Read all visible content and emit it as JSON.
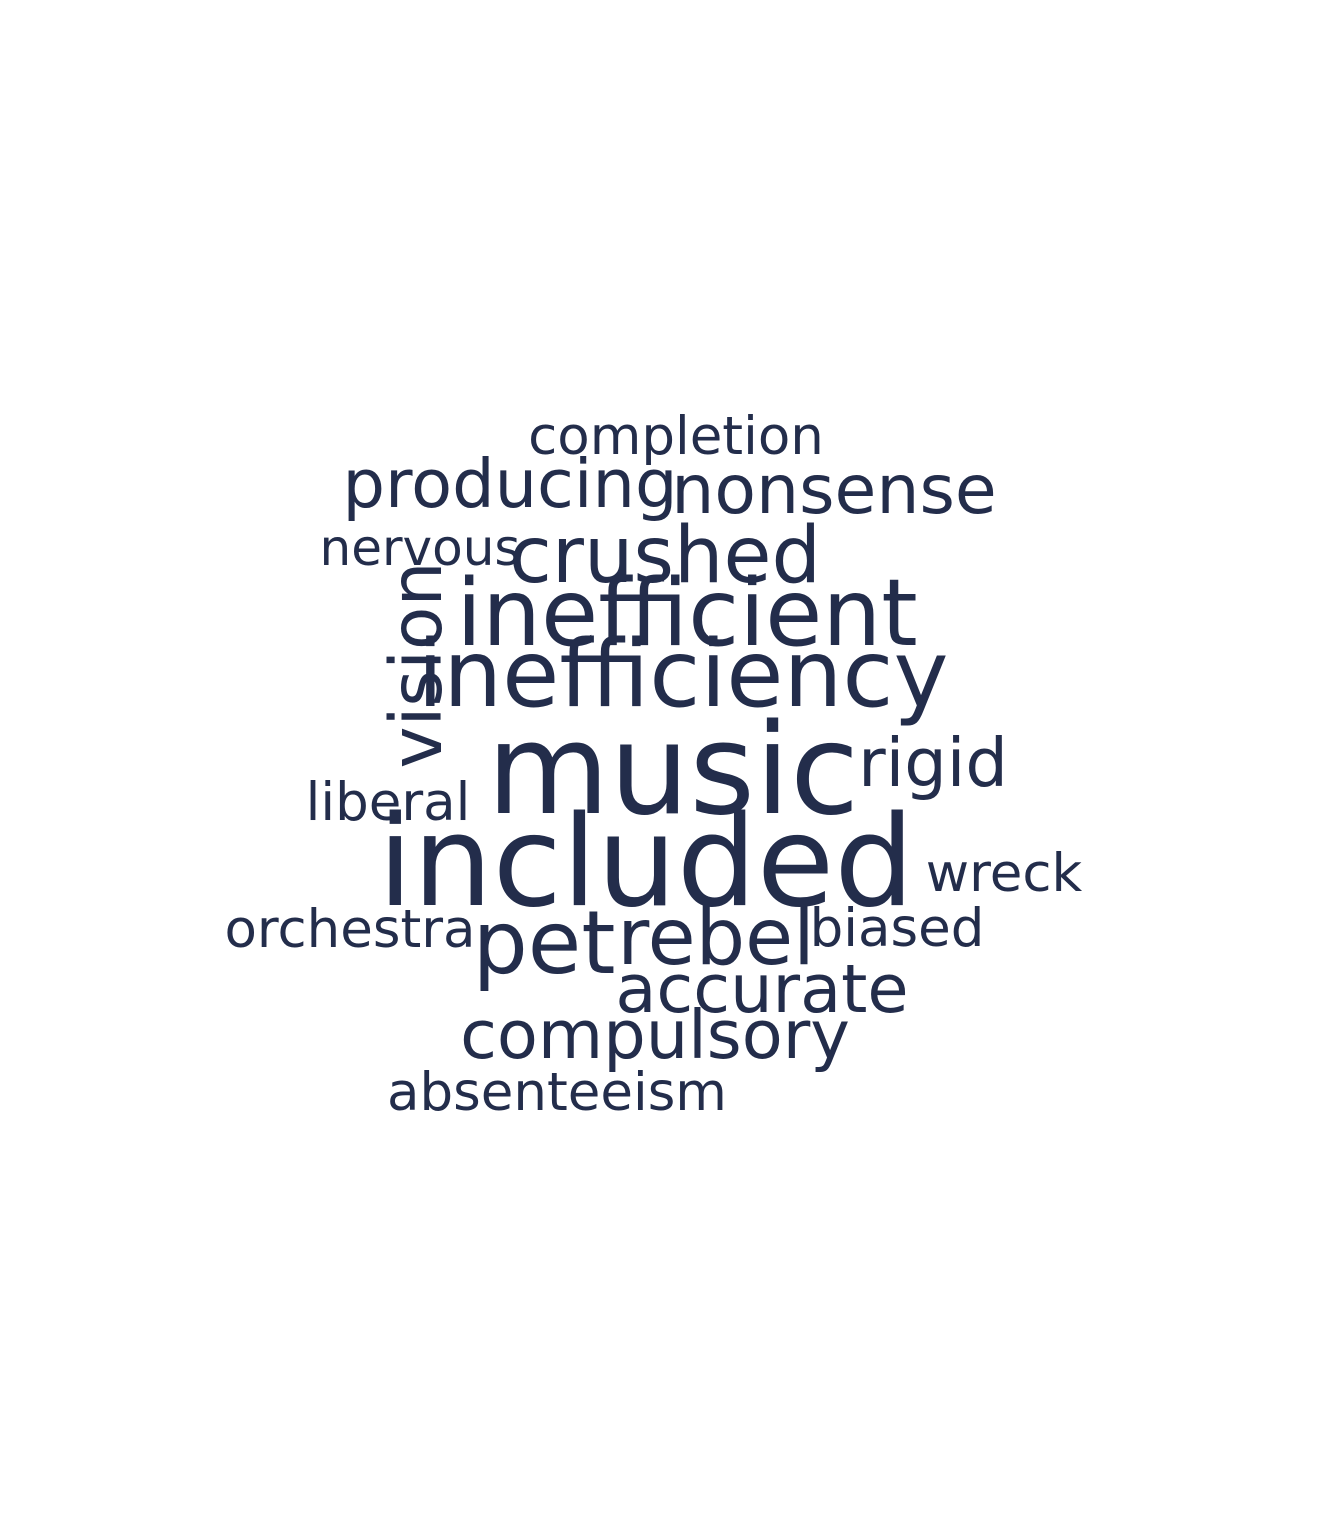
{
  "chart_data": {
    "type": "wordcloud",
    "color": "#232d4b",
    "background": "#ffffff",
    "words": [
      {
        "text": "completion",
        "weight": 0.42,
        "orientation": "horizontal"
      },
      {
        "text": "producing",
        "weight": 0.53,
        "orientation": "horizontal"
      },
      {
        "text": "nonsense",
        "weight": 0.54,
        "orientation": "horizontal"
      },
      {
        "text": "nervous",
        "weight": 0.4,
        "orientation": "horizontal"
      },
      {
        "text": "crushed",
        "weight": 0.62,
        "orientation": "horizontal"
      },
      {
        "text": "vision",
        "weight": 0.56,
        "orientation": "vertical"
      },
      {
        "text": "inefficient",
        "weight": 0.74,
        "orientation": "horizontal"
      },
      {
        "text": "inefficiency",
        "weight": 0.74,
        "orientation": "horizontal"
      },
      {
        "text": "music",
        "weight": 1.0,
        "orientation": "horizontal"
      },
      {
        "text": "rigid",
        "weight": 0.53,
        "orientation": "horizontal"
      },
      {
        "text": "liberal",
        "weight": 0.42,
        "orientation": "horizontal"
      },
      {
        "text": "included",
        "weight": 1.0,
        "orientation": "horizontal"
      },
      {
        "text": "wreck",
        "weight": 0.42,
        "orientation": "horizontal"
      },
      {
        "text": "orchestra",
        "weight": 0.42,
        "orientation": "horizontal"
      },
      {
        "text": "pet",
        "weight": 0.69,
        "orientation": "horizontal"
      },
      {
        "text": "rebel",
        "weight": 0.62,
        "orientation": "horizontal"
      },
      {
        "text": "biased",
        "weight": 0.42,
        "orientation": "horizontal"
      },
      {
        "text": "accurate",
        "weight": 0.53,
        "orientation": "horizontal"
      },
      {
        "text": "compulsory",
        "weight": 0.53,
        "orientation": "horizontal"
      },
      {
        "text": "absenteeism",
        "weight": 0.42,
        "orientation": "horizontal"
      }
    ]
  }
}
